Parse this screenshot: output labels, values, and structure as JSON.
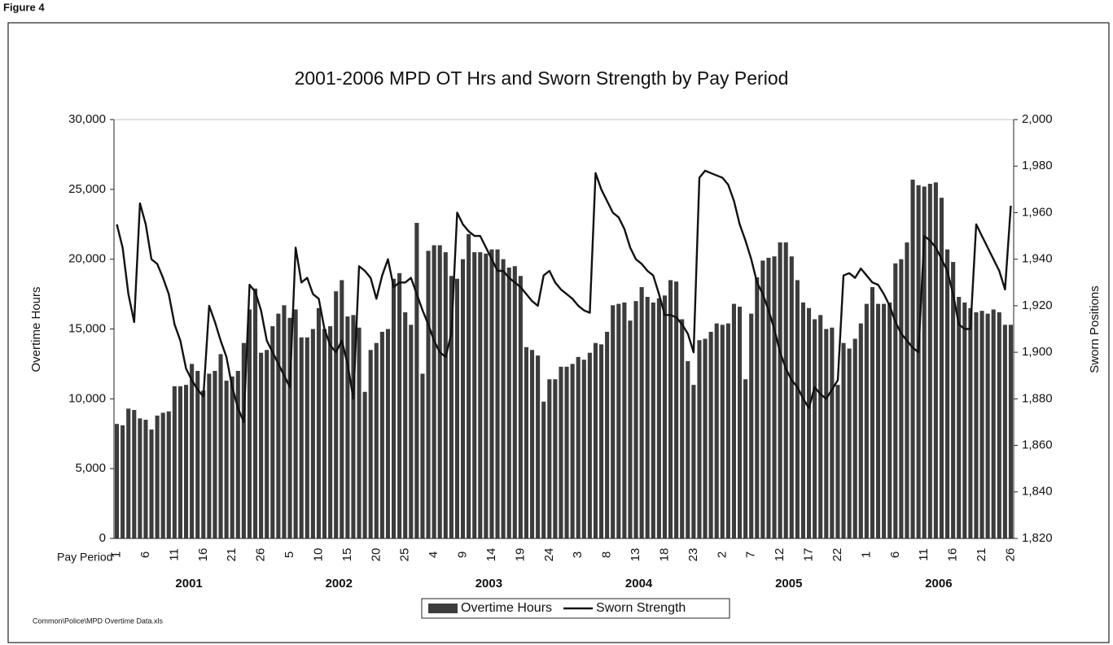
{
  "figure_label": "Figure 4",
  "footnote": "Common\\Police\\MPD Overtime Data.xls",
  "chart_data": {
    "type": "bar",
    "title": "2001-2006 MPD OT Hrs and Sworn Strength by Pay Period",
    "x_label": "Pay Period",
    "y_label": "Overtime Hours",
    "y2_label": "Sworn Positions",
    "groups": [
      "2001",
      "2002",
      "2003",
      "2004",
      "2005",
      "2006"
    ],
    "categories": [
      "1",
      null,
      null,
      null,
      null,
      "6",
      null,
      null,
      null,
      null,
      "11",
      null,
      null,
      null,
      null,
      "16",
      null,
      null,
      null,
      null,
      "21",
      null,
      null,
      null,
      null,
      "26",
      null,
      null,
      null,
      null,
      "5",
      null,
      null,
      null,
      null,
      "10",
      null,
      null,
      null,
      null,
      "15",
      null,
      null,
      null,
      null,
      "20",
      null,
      null,
      null,
      null,
      "25",
      null,
      null,
      null,
      null,
      "4",
      null,
      null,
      null,
      null,
      "9",
      null,
      null,
      null,
      null,
      "14",
      null,
      null,
      null,
      null,
      "19",
      null,
      null,
      null,
      null,
      "24",
      null,
      null,
      null,
      null,
      "3",
      null,
      null,
      null,
      null,
      "8",
      null,
      null,
      null,
      null,
      "13",
      null,
      null,
      null,
      null,
      "18",
      null,
      null,
      null,
      null,
      "23",
      null,
      null,
      null,
      null,
      "2",
      null,
      null,
      null,
      null,
      "7",
      null,
      null,
      null,
      null,
      "12",
      null,
      null,
      null,
      null,
      "17",
      null,
      null,
      null,
      null,
      "22",
      null,
      null,
      null,
      null,
      "1",
      null,
      null,
      null,
      null,
      "6",
      null,
      null,
      null,
      null,
      "11",
      null,
      null,
      null,
      null,
      "16",
      null,
      null,
      null,
      null,
      "21",
      null,
      null,
      null,
      null,
      "26"
    ],
    "series": [
      {
        "name": "Overtime Hours",
        "type": "bar",
        "color": "#3c3c3c",
        "values": [
          8200,
          8100,
          9300,
          9200,
          8600,
          8500,
          7800,
          8800,
          9000,
          9100,
          10900,
          10900,
          11000,
          12500,
          12000,
          10600,
          11800,
          12000,
          13200,
          11300,
          11600,
          12000,
          14000,
          16400,
          17900,
          13300,
          13500,
          15200,
          16100,
          16700,
          15800,
          16400,
          14400,
          14400,
          15000,
          16500,
          15000,
          15200,
          17700,
          18500,
          15900,
          16000,
          15100,
          10500,
          13500,
          14000,
          14800,
          15000,
          18600,
          19000,
          16200,
          15300,
          22600,
          11800,
          20600,
          21000,
          21000,
          20500,
          18800,
          18600,
          20000,
          21800,
          20500,
          20500,
          20400,
          20700,
          20700,
          20000,
          19400,
          19500,
          18800,
          13700,
          13500,
          13100,
          9800,
          11400,
          11400,
          12300,
          12300,
          12500,
          13000,
          12800,
          13300,
          14000,
          13900,
          14800,
          16700,
          16800,
          16900,
          15600,
          17000,
          18000,
          17300,
          16900,
          17200,
          17400,
          18500,
          18400,
          15700,
          12700,
          11000,
          14200,
          14300,
          14800,
          15400,
          15300,
          15400,
          16800,
          16600,
          11400,
          16100,
          18700,
          19900,
          20100,
          20200,
          21200,
          21200,
          20200,
          18500,
          16900,
          16500,
          15700,
          16000,
          15000,
          15100,
          11000,
          14000,
          13600,
          14300,
          15400,
          16800,
          18000,
          16800,
          16800,
          16900,
          19700,
          20000,
          21200,
          25700,
          25300,
          25200,
          25400,
          25500,
          24400,
          20700,
          19800,
          17300,
          16900,
          16500,
          16200,
          16300,
          16100,
          16400,
          16200,
          15300,
          15300
        ]
      },
      {
        "name": "Sworn Strength",
        "type": "line",
        "axis": "y2",
        "color": "#111111",
        "values": [
          1955,
          1945,
          1925,
          1913,
          1964,
          1955,
          1940,
          1938,
          1932,
          1925,
          1912,
          1905,
          1893,
          1888,
          1884,
          1881,
          1920,
          1913,
          1905,
          1898,
          1885,
          1876,
          1870,
          1929,
          1926,
          1918,
          1905,
          1900,
          1895,
          1890,
          1885,
          1945,
          1930,
          1932,
          1925,
          1923,
          1910,
          1903,
          1900,
          1905,
          1895,
          1880,
          1937,
          1935,
          1932,
          1923,
          1933,
          1940,
          1928,
          1930,
          1930,
          1932,
          1925,
          1918,
          1912,
          1905,
          1900,
          1898,
          1908,
          1960,
          1955,
          1952,
          1950,
          1950,
          1945,
          1940,
          1935,
          1935,
          1932,
          1930,
          1928,
          1925,
          1922,
          1920,
          1933,
          1935,
          1930,
          1927,
          1925,
          1923,
          1920,
          1918,
          1917,
          1977,
          1970,
          1965,
          1960,
          1958,
          1953,
          1945,
          1940,
          1938,
          1935,
          1933,
          1925,
          1916,
          1916,
          1915,
          1912,
          1908,
          1900,
          1975,
          1978,
          1977,
          1976,
          1975,
          1972,
          1965,
          1955,
          1948,
          1940,
          1930,
          1925,
          1918,
          1910,
          1900,
          1893,
          1888,
          1885,
          1880,
          1876,
          1885,
          1882,
          1880,
          1884,
          1888,
          1933,
          1934,
          1932,
          1936,
          1933,
          1930,
          1929,
          1925,
          1920,
          1913,
          1908,
          1905,
          1902,
          1900,
          1950,
          1948,
          1945,
          1940,
          1935,
          1925,
          1912,
          1910,
          1910,
          1955,
          1950,
          1945,
          1940,
          1935,
          1927,
          1963
        ]
      }
    ],
    "ylim": [
      0,
      30000
    ],
    "yticks": [
      0,
      {
        "value": 5000,
        "label": "5,000"
      },
      {
        "value": 10000,
        "label": "10,000"
      },
      {
        "value": 15000,
        "label": "15,000"
      },
      {
        "value": 20000,
        "label": "20,000"
      },
      {
        "value": 25000,
        "label": "25,000"
      },
      {
        "value": 30000,
        "label": "30,000"
      }
    ],
    "y2lim": [
      1820,
      2000
    ],
    "y2ticks": [
      {
        "value": 1820,
        "label": "1,820"
      },
      {
        "value": 1840,
        "label": "1,840"
      },
      {
        "value": 1860,
        "label": "1,860"
      },
      {
        "value": 1880,
        "label": "1,880"
      },
      {
        "value": 1900,
        "label": "1,900"
      },
      {
        "value": 1920,
        "label": "1,920"
      },
      {
        "value": 1940,
        "label": "1,940"
      },
      {
        "value": 1960,
        "label": "1,960"
      },
      {
        "value": 1980,
        "label": "1,980"
      },
      {
        "value": 2000,
        "label": "2,000"
      }
    ],
    "grid": false,
    "legend": "bottom"
  }
}
